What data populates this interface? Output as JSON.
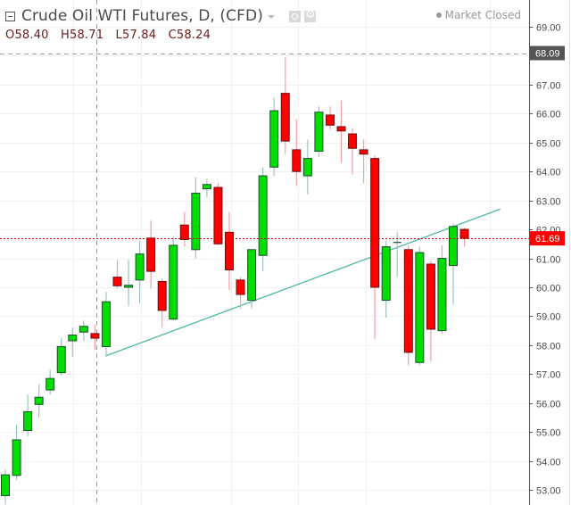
{
  "header": {
    "title": "Crude Oil WTI Futures, D, (CFD)",
    "ohlc": {
      "open_label": "O",
      "open": "58.40",
      "high_label": "H",
      "high": "58.71",
      "low_label": "L",
      "low": "57.84",
      "close_label": "C",
      "close": "58.24"
    },
    "icons": [
      "collapse-icon",
      "dropdown-caret-icon",
      "visibility-icon",
      "settings-gear-icon"
    ]
  },
  "status": {
    "label": "Market Closed",
    "dot_color": "#999999"
  },
  "price_axis": {
    "ticks": [
      "69.00",
      "68.00",
      "67.00",
      "66.00",
      "65.00",
      "64.00",
      "63.00",
      "62.00",
      "61.00",
      "60.00",
      "59.00",
      "58.00",
      "57.00",
      "56.00",
      "55.00",
      "54.00",
      "53.00"
    ],
    "crosshair_price": {
      "label": "68.09",
      "bg": "#555555"
    },
    "last_price": {
      "label": "61.69",
      "bg": "#ff0000"
    }
  },
  "colors": {
    "up": "#00dd00",
    "down": "#ff0000",
    "border": "#1f4f2f",
    "up_wick": "#9cc3c9",
    "down_wick": "#f0a0a8",
    "trendline": "#4db6a5",
    "grid": "#f0f0f0"
  },
  "chart_data": {
    "type": "candlestick",
    "title": "Crude Oil WTI Futures, D, (CFD)",
    "interval": "D",
    "ylim": [
      52.6,
      69.6
    ],
    "grid": true,
    "crosshair": {
      "price": 68.09
    },
    "last_price": 61.69,
    "trendline": {
      "from": {
        "index": 9,
        "price": 57.64
      },
      "to": {
        "index": 44.2,
        "price": 62.7
      }
    },
    "candles": [
      {
        "o": 52.8,
        "h": 53.7,
        "l": 52.5,
        "c": 53.52
      },
      {
        "o": 53.5,
        "h": 55.25,
        "l": 53.35,
        "c": 54.73
      },
      {
        "o": 55.05,
        "h": 56.3,
        "l": 54.85,
        "c": 55.7
      },
      {
        "o": 55.95,
        "h": 56.65,
        "l": 55.5,
        "c": 56.2
      },
      {
        "o": 56.45,
        "h": 57.15,
        "l": 56.3,
        "c": 56.85
      },
      {
        "o": 57.05,
        "h": 58.25,
        "l": 56.95,
        "c": 57.95
      },
      {
        "o": 58.15,
        "h": 58.6,
        "l": 57.6,
        "c": 58.35
      },
      {
        "o": 58.45,
        "h": 58.85,
        "l": 58.15,
        "c": 58.65
      },
      {
        "o": 58.4,
        "h": 58.71,
        "l": 57.84,
        "c": 58.24
      },
      {
        "o": 57.95,
        "h": 59.85,
        "l": 57.6,
        "c": 59.5
      },
      {
        "o": 60.35,
        "h": 60.95,
        "l": 59.95,
        "c": 60.05
      },
      {
        "o": 60.0,
        "h": 60.95,
        "l": 59.35,
        "c": 60.07
      },
      {
        "o": 60.25,
        "h": 61.6,
        "l": 59.45,
        "c": 61.15
      },
      {
        "o": 61.7,
        "h": 62.3,
        "l": 59.95,
        "c": 60.55
      },
      {
        "o": 60.2,
        "h": 60.3,
        "l": 58.6,
        "c": 59.2
      },
      {
        "o": 58.9,
        "h": 61.75,
        "l": 58.85,
        "c": 61.45
      },
      {
        "o": 62.15,
        "h": 62.6,
        "l": 61.4,
        "c": 61.65
      },
      {
        "o": 61.3,
        "h": 63.8,
        "l": 61.0,
        "c": 63.25
      },
      {
        "o": 63.4,
        "h": 63.75,
        "l": 63.1,
        "c": 63.55
      },
      {
        "o": 63.45,
        "h": 63.6,
        "l": 61.45,
        "c": 61.5
      },
      {
        "o": 61.9,
        "h": 62.6,
        "l": 59.9,
        "c": 60.6
      },
      {
        "o": 60.25,
        "h": 60.35,
        "l": 59.25,
        "c": 59.75
      },
      {
        "o": 59.55,
        "h": 61.3,
        "l": 59.25,
        "c": 61.3
      },
      {
        "o": 61.1,
        "h": 64.15,
        "l": 60.55,
        "c": 63.85
      },
      {
        "o": 64.15,
        "h": 66.55,
        "l": 63.85,
        "c": 66.1
      },
      {
        "o": 66.7,
        "h": 67.95,
        "l": 64.6,
        "c": 65.05
      },
      {
        "o": 64.75,
        "h": 65.8,
        "l": 63.5,
        "c": 64.0
      },
      {
        "o": 63.85,
        "h": 65.1,
        "l": 63.2,
        "c": 64.45
      },
      {
        "o": 64.7,
        "h": 66.25,
        "l": 64.5,
        "c": 66.05
      },
      {
        "o": 65.95,
        "h": 66.25,
        "l": 65.45,
        "c": 65.6
      },
      {
        "o": 65.55,
        "h": 66.45,
        "l": 64.3,
        "c": 65.4
      },
      {
        "o": 65.3,
        "h": 65.5,
        "l": 63.9,
        "c": 64.8
      },
      {
        "o": 64.75,
        "h": 65.1,
        "l": 63.6,
        "c": 64.6
      },
      {
        "o": 64.45,
        "h": 64.55,
        "l": 58.2,
        "c": 60.0
      },
      {
        "o": 59.55,
        "h": 61.6,
        "l": 58.95,
        "c": 61.4
      },
      {
        "o": 61.55,
        "h": 61.9,
        "l": 60.35,
        "c": 61.55
      },
      {
        "o": 61.3,
        "h": 61.45,
        "l": 57.3,
        "c": 57.75
      },
      {
        "o": 57.4,
        "h": 61.4,
        "l": 57.3,
        "c": 61.2
      },
      {
        "o": 60.8,
        "h": 60.9,
        "l": 57.45,
        "c": 58.55
      },
      {
        "o": 58.5,
        "h": 61.45,
        "l": 58.4,
        "c": 61.0
      },
      {
        "o": 60.75,
        "h": 62.2,
        "l": 59.4,
        "c": 62.1
      },
      {
        "o": 62.0,
        "h": 62.05,
        "l": 61.4,
        "c": 61.69
      }
    ]
  }
}
